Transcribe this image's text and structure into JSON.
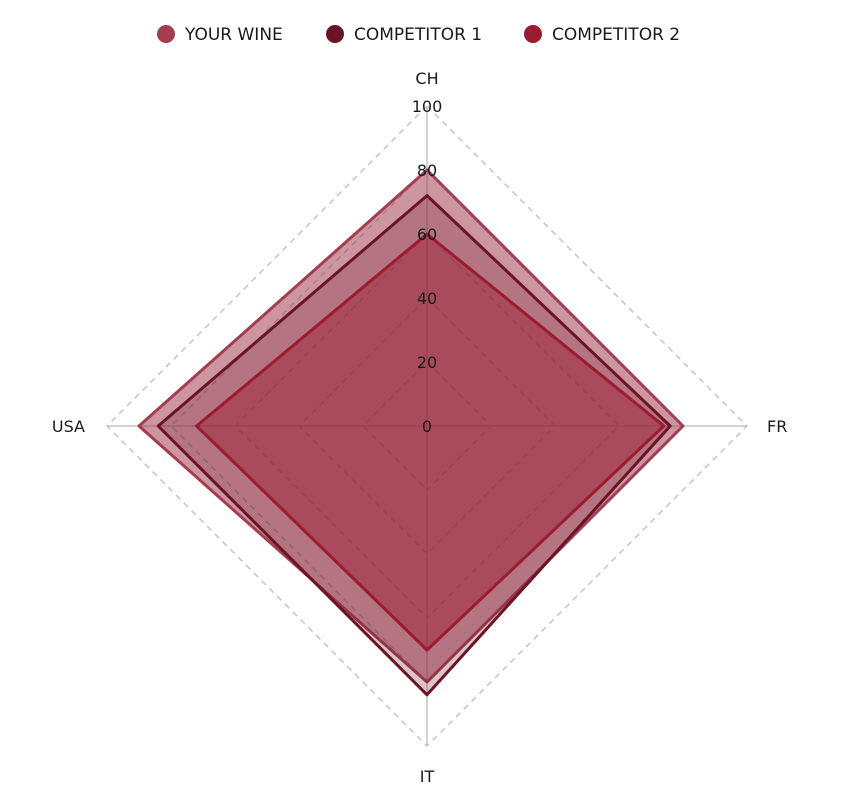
{
  "chart_data": {
    "type": "radar",
    "axes": [
      "CH",
      "FR",
      "IT",
      "USA"
    ],
    "rlim": [
      0,
      100
    ],
    "ticks": [
      "0",
      "20",
      "40",
      "60",
      "80",
      "100"
    ],
    "grid": "dashed",
    "legend_position": "top",
    "series": [
      {
        "name": "YOUR WINE",
        "values": [
          80,
          80,
          80,
          90
        ],
        "color": "#A23E50",
        "fill_opacity": 0.55
      },
      {
        "name": "COMPETITOR 1",
        "values": [
          72,
          76,
          84,
          84
        ],
        "color": "#6B1426",
        "fill_opacity": 0.25
      },
      {
        "name": "COMPETITOR 2",
        "values": [
          60,
          74,
          70,
          72
        ],
        "color": "#9B1B30",
        "fill_opacity": 0.45
      }
    ]
  }
}
